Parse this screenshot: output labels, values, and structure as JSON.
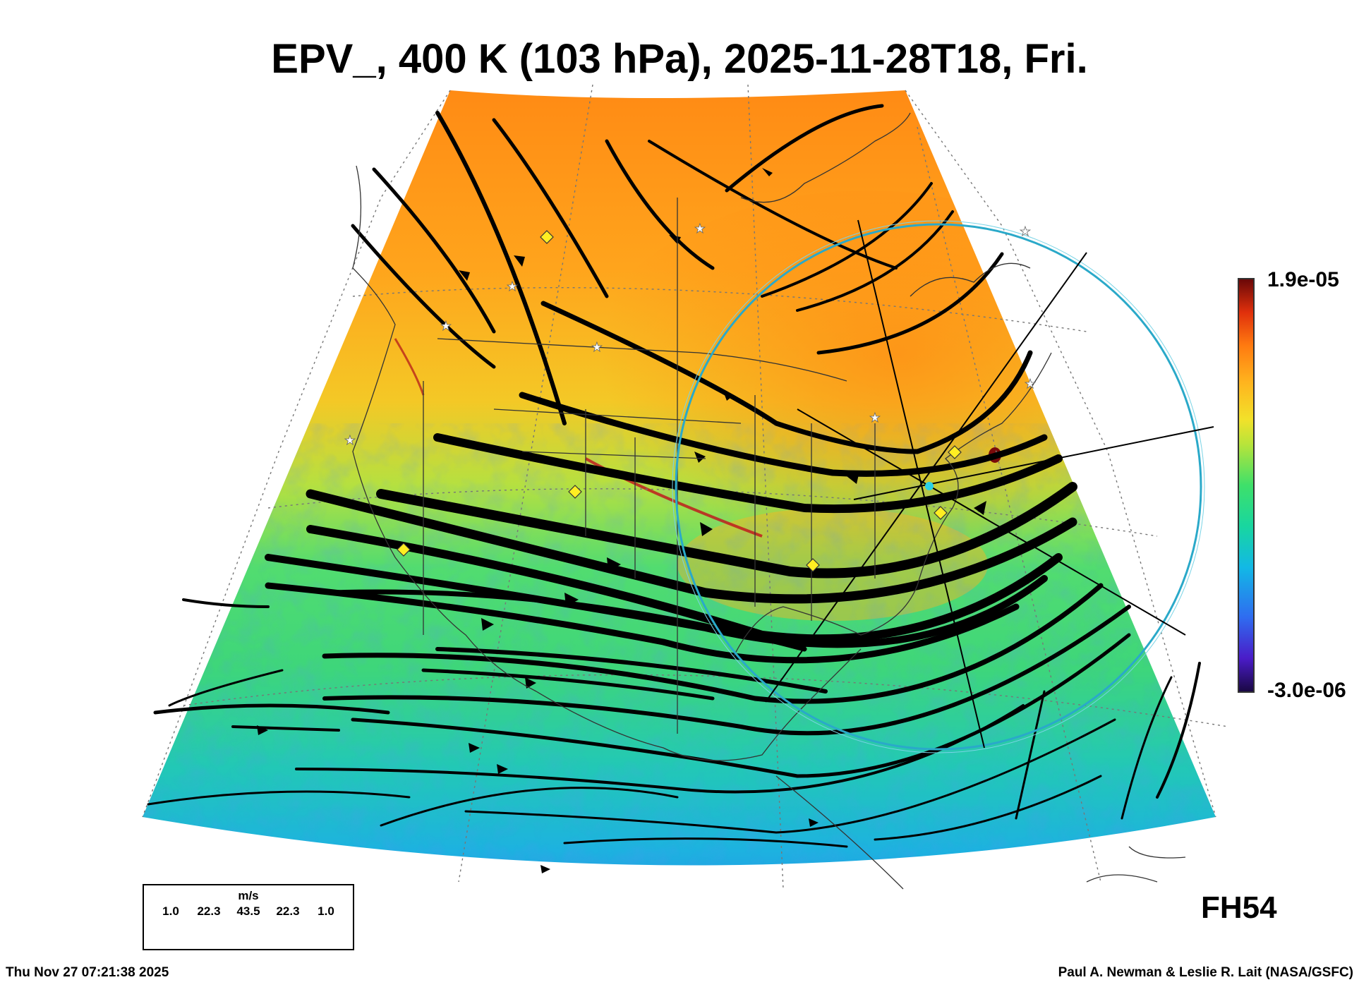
{
  "title": "EPV_, 400 K (103 hPa), 2025-11-28T18, Fri.",
  "forecast_hour": "FH54",
  "timestamp": "Thu Nov 27 07:21:38 2025",
  "credit": "Paul A. Newman & Leslie R. Lait (NASA/GSFC)",
  "colorbar": {
    "max_label": "1.9e-05",
    "min_label": "-3.0e-06",
    "colors": [
      "#1a0844",
      "#4a1cc8",
      "#2f6cf0",
      "#12b8e6",
      "#18d6a0",
      "#3ee06a",
      "#b8e43a",
      "#f2e12a",
      "#ffb41e",
      "#ff7a10",
      "#e0300c",
      "#6a0808"
    ]
  },
  "wind_legend": {
    "unit": "m/s",
    "values": [
      "1.0",
      "22.3",
      "43.5",
      "22.3",
      "1.0"
    ]
  },
  "map": {
    "station_markers": [
      "yellow-diamond",
      "white-star"
    ],
    "range_ring_color": "#2aa9c9",
    "center_marker_color": "#2ad0e6"
  }
}
